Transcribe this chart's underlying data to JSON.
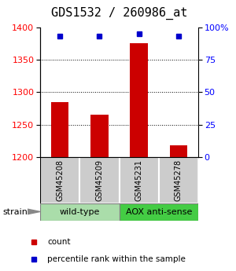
{
  "title": "GDS1532 / 260986_at",
  "samples": [
    "GSM45208",
    "GSM45209",
    "GSM45231",
    "GSM45278"
  ],
  "count_values": [
    1285,
    1265,
    1375,
    1218
  ],
  "percentile_values": [
    93,
    93,
    95,
    93
  ],
  "ylim_left": [
    1200,
    1400
  ],
  "ylim_right": [
    0,
    100
  ],
  "yticks_left": [
    1200,
    1250,
    1300,
    1350,
    1400
  ],
  "yticks_right": [
    0,
    25,
    50,
    75,
    100
  ],
  "ytick_labels_right": [
    "0",
    "25",
    "50",
    "75",
    "100%"
  ],
  "bar_color": "#cc0000",
  "dot_color": "#0000cc",
  "bar_width": 0.45,
  "groups": [
    {
      "label": "wild-type",
      "samples": [
        0,
        1
      ],
      "color": "#aaddaa"
    },
    {
      "label": "AOX anti-sense",
      "samples": [
        2,
        3
      ],
      "color": "#44cc44"
    }
  ],
  "strain_label": "strain",
  "legend_items": [
    {
      "color": "#cc0000",
      "label": "count"
    },
    {
      "color": "#0000cc",
      "label": "percentile rank within the sample"
    }
  ],
  "grid_color": "#000000",
  "plot_bg_color": "#ffffff",
  "sample_box_color": "#cccccc",
  "title_fontsize": 11,
  "tick_fontsize": 8,
  "label_fontsize": 8
}
